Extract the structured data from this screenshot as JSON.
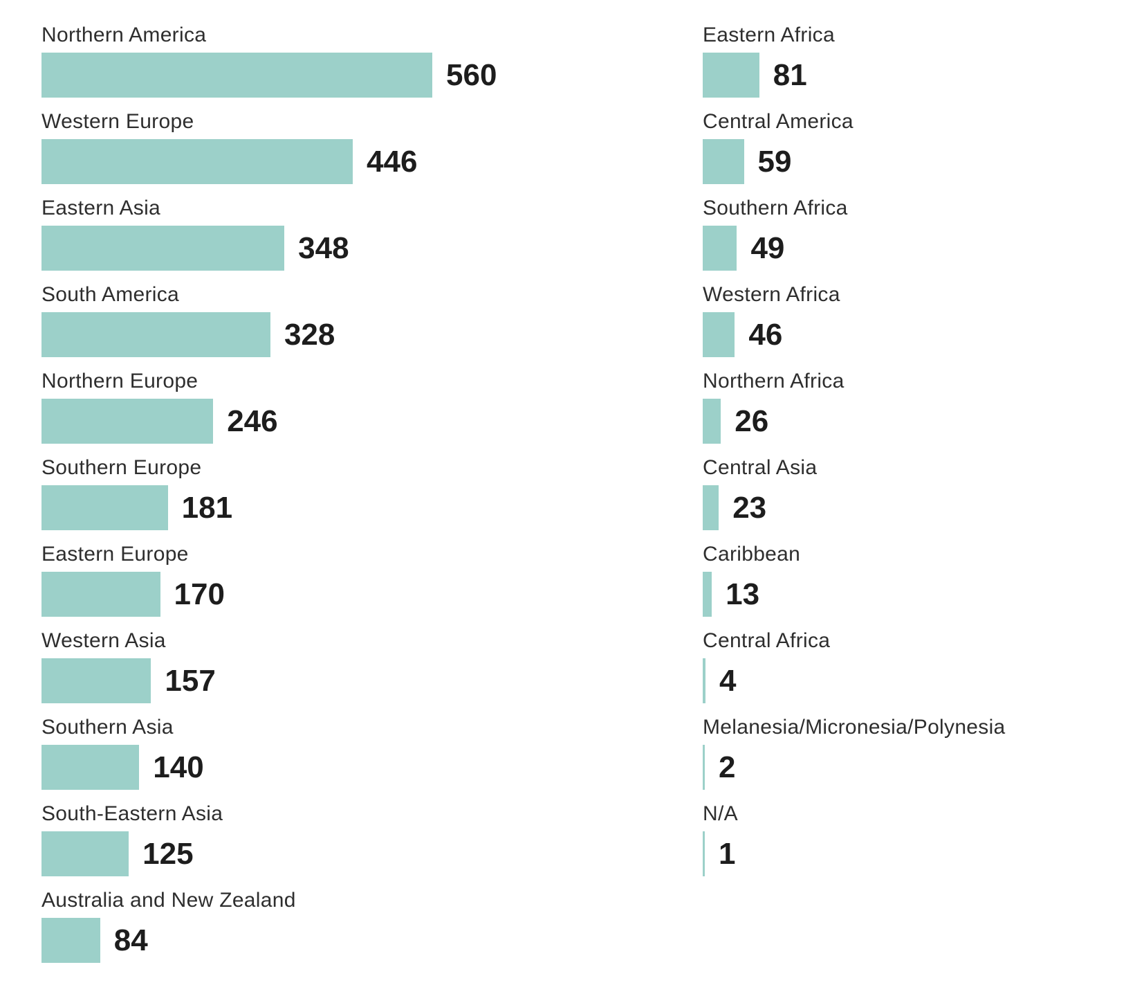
{
  "chart_data": {
    "type": "bar",
    "orientation": "horizontal",
    "title": "",
    "xlabel": "",
    "ylabel": "",
    "grid": false,
    "legend": false,
    "axis_ticks_visible": false,
    "value_labels_visible": true,
    "bar_color": "#9cd0c9",
    "label_color": "#2e2e2e",
    "value_color": "#1d1d1d",
    "background_color": "#ffffff",
    "value_range": [
      0,
      560
    ],
    "columns": [
      {
        "name": "left",
        "items": [
          {
            "label": "Northern America",
            "value": 560
          },
          {
            "label": "Western Europe",
            "value": 446
          },
          {
            "label": "Eastern Asia",
            "value": 348
          },
          {
            "label": "South America",
            "value": 328
          },
          {
            "label": "Northern Europe",
            "value": 246
          },
          {
            "label": "Southern Europe",
            "value": 181
          },
          {
            "label": "Eastern Europe",
            "value": 170
          },
          {
            "label": "Western Asia",
            "value": 157
          },
          {
            "label": "Southern Asia",
            "value": 140
          },
          {
            "label": "South-Eastern Asia",
            "value": 125
          },
          {
            "label": "Australia and New Zealand",
            "value": 84
          }
        ]
      },
      {
        "name": "right",
        "items": [
          {
            "label": "Eastern Africa",
            "value": 81
          },
          {
            "label": "Central America",
            "value": 59
          },
          {
            "label": "Southern Africa",
            "value": 49
          },
          {
            "label": "Western Africa",
            "value": 46
          },
          {
            "label": "Northern Africa",
            "value": 26
          },
          {
            "label": "Central Asia",
            "value": 23
          },
          {
            "label": "Caribbean",
            "value": 13
          },
          {
            "label": "Central Africa",
            "value": 4
          },
          {
            "label": "Melanesia/Micronesia/Polynesia",
            "value": 2
          },
          {
            "label": "N/A",
            "value": 1
          }
        ]
      }
    ]
  }
}
